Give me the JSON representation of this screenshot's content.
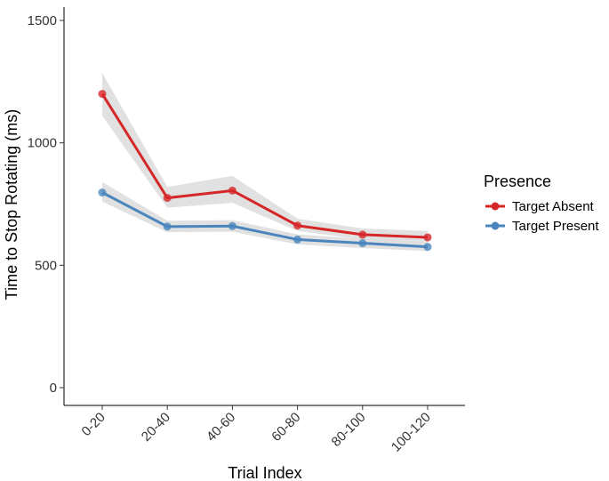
{
  "chart_data": {
    "type": "line",
    "title": "",
    "xlabel": "Trial Index",
    "ylabel": "Time to Stop Rotating (ms)",
    "categories": [
      "0-20",
      "20-40",
      "40-60",
      "60-80",
      "80-100",
      "100-120"
    ],
    "ylim": [
      0,
      1550
    ],
    "yticks": [
      0,
      500,
      1000,
      1500
    ],
    "grid": false,
    "legend": {
      "title": "Presence",
      "position": "right"
    },
    "series": [
      {
        "name": "Target Absent",
        "color": "#d62728",
        "values": [
          1200,
          775,
          805,
          662,
          625,
          614
        ],
        "ci_low": [
          1110,
          735,
          755,
          640,
          605,
          590
        ],
        "ci_high": [
          1285,
          820,
          865,
          690,
          650,
          640
        ]
      },
      {
        "name": "Target Present",
        "color": "#4a86bd",
        "values": [
          797,
          658,
          660,
          605,
          590,
          575
        ],
        "ci_low": [
          760,
          635,
          637,
          585,
          570,
          558
        ],
        "ci_high": [
          840,
          682,
          684,
          626,
          608,
          592
        ]
      }
    ],
    "ribbon_color": "#d9d9d9"
  }
}
